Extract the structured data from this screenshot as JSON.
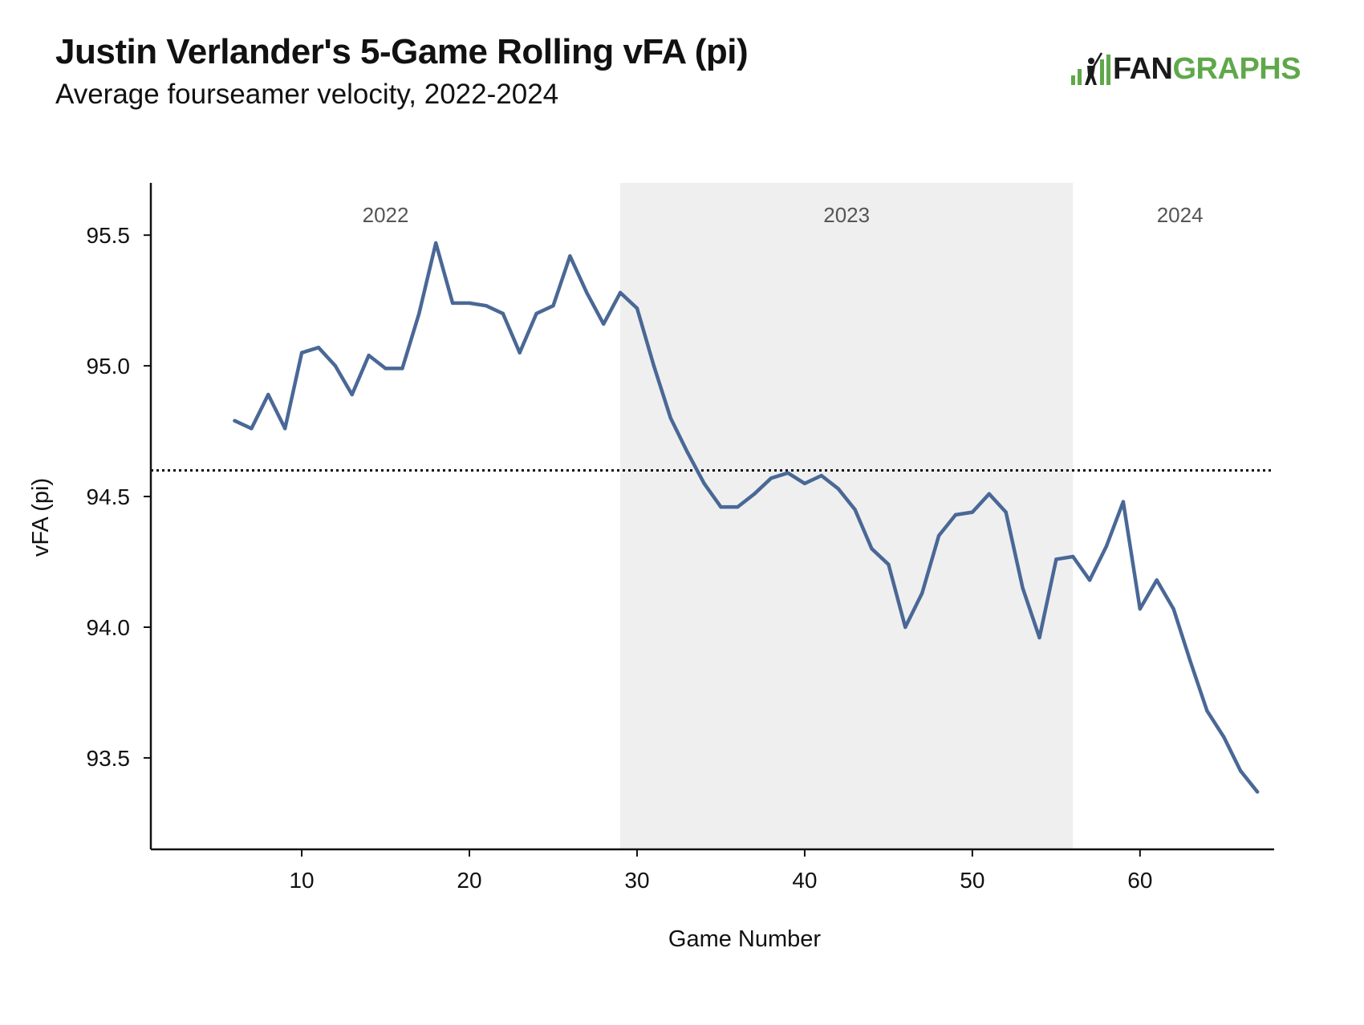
{
  "header": {
    "title": "Justin Verlander's 5-Game Rolling vFA (pi)",
    "subtitle": "Average fourseamer velocity, 2022-2024"
  },
  "logo": {
    "text_fan": "FAN",
    "text_graphs": "GRAPHS",
    "icon": "batter-bars-icon",
    "accent": "#5fa84a"
  },
  "chart_data": {
    "type": "line",
    "xlabel": "Game Number",
    "ylabel": "vFA (pi)",
    "xlim": [
      1,
      68
    ],
    "ylim": [
      93.15,
      95.7
    ],
    "x_ticks": [
      10,
      20,
      30,
      40,
      50,
      60
    ],
    "y_ticks": [
      93.5,
      94.0,
      94.5,
      95.0,
      95.5
    ],
    "y_tick_labels": [
      "93.5",
      "94.0",
      "94.5",
      "95.0",
      "95.5"
    ],
    "grid": false,
    "line_color": "#4a6896",
    "reference_line": {
      "y": 94.6,
      "style": "dotted",
      "color": "#111111"
    },
    "season_bands": [
      {
        "label": "2022",
        "x_start": 1,
        "x_end": 29,
        "shaded": false
      },
      {
        "label": "2023",
        "x_start": 29,
        "x_end": 56,
        "shaded": true,
        "color": "#efefef"
      },
      {
        "label": "2024",
        "x_start": 56,
        "x_end": 68,
        "shaded": false
      }
    ],
    "series": [
      {
        "x": [
          6,
          7,
          8,
          9,
          10,
          11,
          12,
          13,
          14,
          15,
          16,
          17,
          18,
          19,
          20,
          21,
          22,
          23,
          24,
          25,
          26,
          27,
          28,
          29,
          30,
          31,
          32,
          33,
          34,
          35,
          36,
          37,
          38,
          39,
          40,
          41,
          42,
          43,
          44,
          45,
          46,
          47,
          48,
          49,
          50,
          51,
          52,
          53,
          54,
          55,
          56,
          57,
          58,
          59,
          60,
          61,
          62,
          63,
          64,
          65,
          66,
          67
        ],
        "y": [
          94.79,
          94.76,
          94.89,
          94.76,
          95.05,
          95.07,
          95.0,
          94.89,
          95.04,
          94.99,
          94.99,
          95.2,
          95.47,
          95.24,
          95.24,
          95.23,
          95.2,
          95.05,
          95.2,
          95.23,
          95.42,
          95.28,
          95.16,
          95.28,
          95.22,
          95.0,
          94.8,
          94.67,
          94.55,
          94.46,
          94.46,
          94.51,
          94.57,
          94.59,
          94.55,
          94.58,
          94.53,
          94.45,
          94.3,
          94.24,
          94.0,
          94.13,
          94.35,
          94.43,
          94.44,
          94.51,
          94.44,
          94.15,
          93.96,
          94.26,
          94.27,
          94.18,
          94.31,
          94.48,
          94.07,
          94.18,
          94.07,
          93.87,
          93.68,
          93.58,
          93.45,
          93.37
        ]
      }
    ]
  }
}
